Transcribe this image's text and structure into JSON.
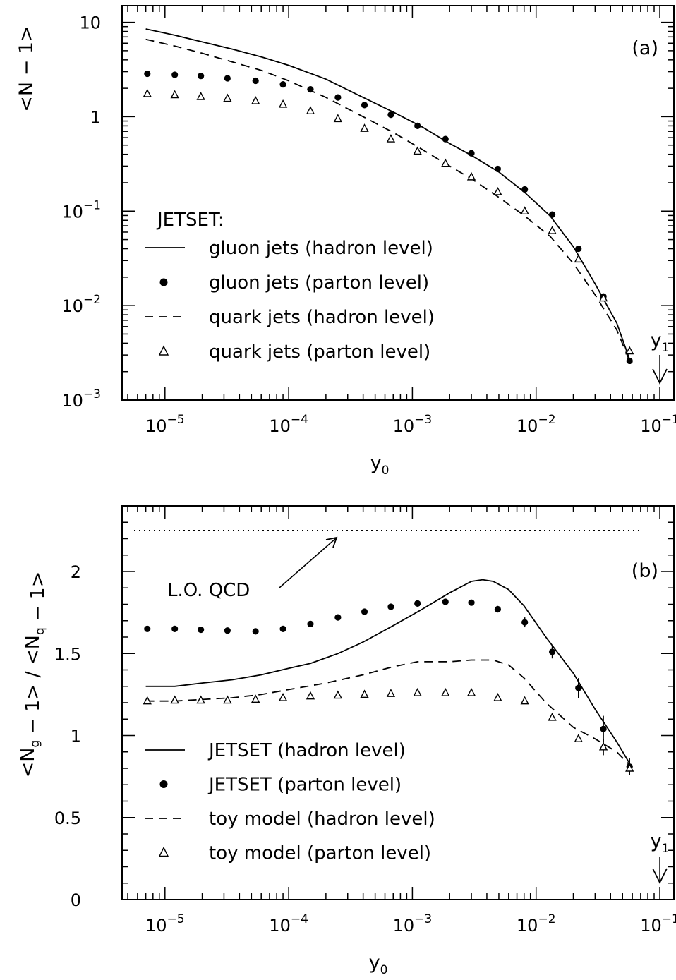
{
  "chart_data": [
    {
      "id": "a",
      "type": "line",
      "panel_tag": "(a)",
      "xlabel_base": "y",
      "xlabel_sub": "0",
      "ylabel": "<N − 1>",
      "x_scale": "log",
      "y_scale": "log",
      "xlim": [
        4.5e-06,
        0.13
      ],
      "ylim": [
        0.001,
        15
      ],
      "x_ticks": [
        {
          "value": 1e-05,
          "base": "10",
          "exp": "−5"
        },
        {
          "value": 0.0001,
          "base": "10",
          "exp": "−4"
        },
        {
          "value": 0.001,
          "base": "10",
          "exp": "−3"
        },
        {
          "value": 0.01,
          "base": "10",
          "exp": "−2"
        },
        {
          "value": 0.1,
          "base": "10",
          "exp": "−1"
        }
      ],
      "y_ticks": [
        {
          "value": 10,
          "base": "10",
          "exp": ""
        },
        {
          "value": 1,
          "base": "1",
          "exp": ""
        },
        {
          "value": 0.1,
          "base": "10",
          "exp": "−1"
        },
        {
          "value": 0.01,
          "base": "10",
          "exp": "−2"
        },
        {
          "value": 0.001,
          "base": "10",
          "exp": "−3"
        }
      ],
      "legend_title": "JETSET:",
      "legend": [
        {
          "key": "gluon_hadron",
          "label": "gluon jets (hadron level)"
        },
        {
          "key": "gluon_parton",
          "label": "gluon jets (parton level)"
        },
        {
          "key": "quark_hadron",
          "label": "quark jets (hadron level)"
        },
        {
          "key": "quark_parton",
          "label": "quark jets (parton level)"
        }
      ],
      "arrow_label_base": "y",
      "arrow_label_sub": "1",
      "arrow_x": 0.1,
      "series": [
        {
          "key": "gluon_hadron",
          "style": "solid",
          "x": [
            7e-06,
            1.2e-05,
            2e-05,
            3.5e-05,
            6e-05,
            0.0001,
            0.0002,
            0.0004,
            0.0007,
            0.0012,
            0.002,
            0.003,
            0.005,
            0.008,
            0.013,
            0.02,
            0.03,
            0.045,
            0.057
          ],
          "y": [
            8.5,
            7.3,
            6.2,
            5.2,
            4.3,
            3.5,
            2.5,
            1.6,
            1.12,
            0.78,
            0.52,
            0.39,
            0.26,
            0.16,
            0.089,
            0.042,
            0.017,
            0.0065,
            0.0027
          ]
        },
        {
          "key": "quark_hadron",
          "style": "dashed",
          "x": [
            7e-06,
            1.2e-05,
            2e-05,
            3.5e-05,
            6e-05,
            0.0001,
            0.0002,
            0.0004,
            0.0007,
            0.0012,
            0.002,
            0.003,
            0.005,
            0.008,
            0.013,
            0.02,
            0.03,
            0.045,
            0.057
          ],
          "y": [
            6.6,
            5.6,
            4.7,
            3.8,
            3.1,
            2.4,
            1.6,
            1.0,
            0.68,
            0.45,
            0.3,
            0.22,
            0.14,
            0.09,
            0.054,
            0.028,
            0.013,
            0.0055,
            0.0026
          ]
        },
        {
          "key": "gluon_parton",
          "style": "dot",
          "x": [
            7.2e-06,
            1.2e-05,
            1.95e-05,
            3.2e-05,
            5.4e-05,
            9e-05,
            0.00015,
            0.00025,
            0.00041,
            0.00067,
            0.0011,
            0.00185,
            0.003,
            0.0049,
            0.0081,
            0.0135,
            0.022,
            0.035,
            0.057
          ],
          "y": [
            2.85,
            2.78,
            2.7,
            2.55,
            2.4,
            2.2,
            1.95,
            1.6,
            1.33,
            1.05,
            0.8,
            0.58,
            0.41,
            0.28,
            0.17,
            0.092,
            0.04,
            0.0125,
            0.0026
          ]
        },
        {
          "key": "quark_parton",
          "style": "triangle",
          "x": [
            7.2e-06,
            1.2e-05,
            1.95e-05,
            3.2e-05,
            5.4e-05,
            9e-05,
            0.00015,
            0.00025,
            0.00041,
            0.00067,
            0.0011,
            0.00185,
            0.003,
            0.0049,
            0.0081,
            0.0135,
            0.022,
            0.035,
            0.057
          ],
          "y": [
            1.75,
            1.7,
            1.63,
            1.56,
            1.47,
            1.35,
            1.15,
            0.95,
            0.75,
            0.58,
            0.43,
            0.32,
            0.23,
            0.16,
            0.1,
            0.062,
            0.031,
            0.012,
            0.0033
          ]
        }
      ]
    },
    {
      "id": "b",
      "type": "line",
      "panel_tag": "(b)",
      "xlabel_base": "y",
      "xlabel_sub": "0",
      "ylabel": "<N_g − 1> / <N_q − 1>",
      "x_scale": "log",
      "y_scale": "linear",
      "xlim": [
        4.5e-06,
        0.13
      ],
      "ylim": [
        0,
        2.4
      ],
      "x_ticks": [
        {
          "value": 1e-05,
          "base": "10",
          "exp": "−5"
        },
        {
          "value": 0.0001,
          "base": "10",
          "exp": "−4"
        },
        {
          "value": 0.001,
          "base": "10",
          "exp": "−3"
        },
        {
          "value": 0.01,
          "base": "10",
          "exp": "−2"
        },
        {
          "value": 0.1,
          "base": "10",
          "exp": "−1"
        }
      ],
      "y_ticks": [
        {
          "value": 2,
          "label": "2"
        },
        {
          "value": 1.5,
          "label": "1.5"
        },
        {
          "value": 1,
          "label": "1"
        },
        {
          "value": 0.5,
          "label": "0.5"
        },
        {
          "value": 0,
          "label": "0"
        }
      ],
      "annotation": {
        "label": "L.O. QCD",
        "value": 2.25
      },
      "legend": [
        {
          "key": "jetset_hadron",
          "label": "JETSET (hadron level)"
        },
        {
          "key": "jetset_parton",
          "label": "JETSET (parton level)"
        },
        {
          "key": "toy_hadron",
          "label": "toy model (hadron level)"
        },
        {
          "key": "toy_parton",
          "label": "toy model (parton level)"
        }
      ],
      "arrow_label_base": "y",
      "arrow_label_sub": "1",
      "arrow_x": 0.1,
      "series": [
        {
          "key": "jetset_hadron",
          "style": "solid",
          "x": [
            7e-06,
            1.2e-05,
            2e-05,
            3.5e-05,
            6e-05,
            0.0001,
            0.00015,
            0.00025,
            0.0004,
            0.0007,
            0.0012,
            0.002,
            0.003,
            0.0037,
            0.0045,
            0.006,
            0.008,
            0.012,
            0.02,
            0.03,
            0.045,
            0.057
          ],
          "y": [
            1.3,
            1.3,
            1.32,
            1.34,
            1.37,
            1.41,
            1.44,
            1.5,
            1.57,
            1.67,
            1.77,
            1.87,
            1.94,
            1.95,
            1.94,
            1.89,
            1.79,
            1.6,
            1.38,
            1.16,
            0.96,
            0.83
          ]
        },
        {
          "key": "toy_hadron",
          "style": "dashed",
          "x": [
            7e-06,
            1.2e-05,
            2e-05,
            3.5e-05,
            6e-05,
            0.0001,
            0.0002,
            0.0004,
            0.0007,
            0.0011,
            0.002,
            0.003,
            0.0045,
            0.006,
            0.008,
            0.012,
            0.02,
            0.03,
            0.045,
            0.057
          ],
          "y": [
            1.21,
            1.21,
            1.22,
            1.23,
            1.25,
            1.28,
            1.32,
            1.37,
            1.42,
            1.45,
            1.45,
            1.46,
            1.46,
            1.43,
            1.35,
            1.2,
            1.05,
            0.98,
            0.9,
            0.82
          ]
        },
        {
          "key": "jetset_parton",
          "style": "dot",
          "x": [
            7.2e-06,
            1.2e-05,
            1.95e-05,
            3.2e-05,
            5.4e-05,
            9e-05,
            0.00015,
            0.00025,
            0.00041,
            0.00067,
            0.0011,
            0.00185,
            0.003,
            0.0049,
            0.0081,
            0.0135,
            0.022,
            0.035,
            0.057
          ],
          "y": [
            1.65,
            1.65,
            1.645,
            1.64,
            1.635,
            1.65,
            1.68,
            1.72,
            1.755,
            1.785,
            1.805,
            1.815,
            1.81,
            1.77,
            1.69,
            1.51,
            1.29,
            1.04,
            0.81
          ],
          "err": [
            0,
            0,
            0,
            0,
            0,
            0,
            0,
            0,
            0,
            0,
            0,
            0,
            0,
            0.02,
            0.03,
            0.04,
            0.06,
            0.08,
            0.05
          ]
        },
        {
          "key": "toy_parton",
          "style": "triangle",
          "x": [
            7.2e-06,
            1.2e-05,
            1.95e-05,
            3.2e-05,
            5.4e-05,
            9e-05,
            0.00015,
            0.00025,
            0.00041,
            0.00067,
            0.0011,
            0.00185,
            0.003,
            0.0049,
            0.0081,
            0.0135,
            0.022,
            0.035,
            0.057
          ],
          "y": [
            1.21,
            1.215,
            1.215,
            1.215,
            1.22,
            1.23,
            1.24,
            1.245,
            1.25,
            1.255,
            1.26,
            1.26,
            1.26,
            1.23,
            1.21,
            1.11,
            0.98,
            0.93,
            0.8
          ],
          "err": [
            0,
            0,
            0,
            0,
            0,
            0,
            0,
            0,
            0,
            0,
            0,
            0,
            0,
            0,
            0,
            0,
            0.02,
            0.05,
            0.04
          ]
        }
      ]
    }
  ]
}
